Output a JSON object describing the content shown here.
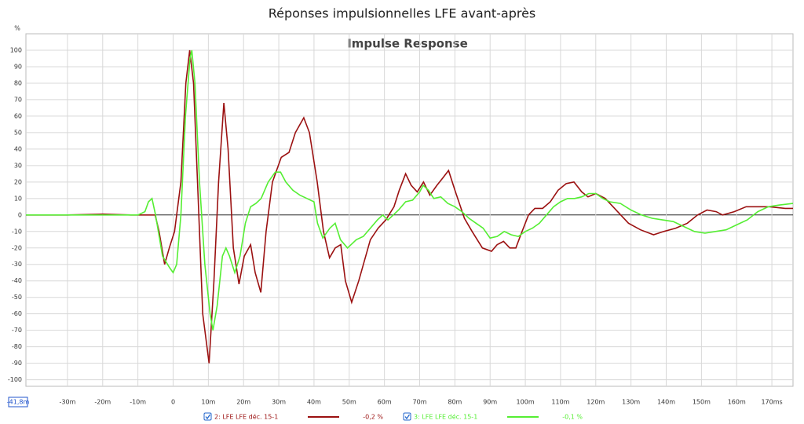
{
  "chart_data": {
    "type": "line",
    "title": "Réponses impulsionnelles LFE avant-après",
    "subtitle": "Impulse Response",
    "y_unit": "%",
    "xlim": [
      -41.8,
      176
    ],
    "ylim": [
      -104,
      110
    ],
    "xticks": [
      {
        "value": -41.8,
        "label": "-41,8m"
      },
      {
        "value": -30,
        "label": "-30m"
      },
      {
        "value": -20,
        "label": "-20m"
      },
      {
        "value": -10,
        "label": "-10m"
      },
      0,
      {
        "value": 10,
        "label": "10m"
      },
      {
        "value": 20,
        "label": "20m"
      },
      {
        "value": 30,
        "label": "30m"
      },
      {
        "value": 40,
        "label": "40m"
      },
      {
        "value": 50,
        "label": "50m"
      },
      {
        "value": 60,
        "label": "60m"
      },
      {
        "value": 70,
        "label": "70m"
      },
      {
        "value": 80,
        "label": "80m"
      },
      {
        "value": 90,
        "label": "90m"
      },
      {
        "value": 100,
        "label": "100m"
      },
      {
        "value": 110,
        "label": "110m"
      },
      {
        "value": 120,
        "label": "120m"
      },
      {
        "value": 130,
        "label": "130m"
      },
      {
        "value": 140,
        "label": "140m"
      },
      {
        "value": 150,
        "label": "150m"
      },
      {
        "value": 160,
        "label": "160m"
      },
      {
        "value": 170,
        "label": "170ms"
      }
    ],
    "yticks": [
      -100,
      -90,
      -80,
      -70,
      -60,
      -50,
      -40,
      -30,
      -20,
      -10,
      0,
      10,
      20,
      30,
      40,
      50,
      60,
      70,
      80,
      90,
      100
    ],
    "grid": true,
    "series": [
      {
        "name": "2: LFE LFE déc. 15-1",
        "legend_value": "-0,2 %",
        "color": "#9b1111",
        "x": [
          -41.8,
          -30,
          -20,
          -12,
          -5.1,
          -4,
          -2.4,
          -1.1,
          0.4,
          2.2,
          3.6,
          4.7,
          5.8,
          7.1,
          8.4,
          10.2,
          11.6,
          12.9,
          14.4,
          15.6,
          17.1,
          18.7,
          20.2,
          22,
          23.3,
          24.9,
          26.4,
          28.2,
          30.7,
          32.9,
          34.7,
          37.1,
          38.7,
          40.9,
          42.7,
          44.4,
          46,
          47.6,
          48.9,
          50.7,
          52.7,
          56,
          58.2,
          60.4,
          62.7,
          64.2,
          66,
          67.6,
          69.3,
          71.1,
          72.9,
          74.9,
          76.4,
          78.2,
          80,
          82.7,
          84.9,
          87.8,
          90.4,
          92,
          93.8,
          95.6,
          97.3,
          98.7,
          100.9,
          102.7,
          104.9,
          107.1,
          109.3,
          111.6,
          113.8,
          116,
          117.8,
          120,
          122.7,
          124.9,
          127.1,
          129.3,
          132.7,
          136.4,
          139.3,
          142.7,
          146,
          148.9,
          151.6,
          154.2,
          156,
          159.3,
          162.7,
          166,
          169.3,
          173.8,
          176
        ],
        "values": [
          0,
          0,
          0.5,
          0,
          0,
          -10,
          -30,
          -20,
          -10,
          20,
          80,
          100,
          80,
          10,
          -60,
          -90,
          -40,
          20,
          68,
          40,
          -20,
          -42,
          -25,
          -18,
          -35,
          -47,
          -10,
          20,
          35,
          38,
          50,
          59,
          50,
          20,
          -10,
          -26,
          -20,
          -18,
          -40,
          -53,
          -40,
          -15,
          -8,
          -3,
          5,
          15,
          25,
          18,
          14,
          20,
          12,
          18,
          22,
          27,
          15,
          -2,
          -10,
          -20,
          -22,
          -18,
          -16,
          -20,
          -20,
          -12,
          0,
          4,
          4,
          8,
          15,
          19,
          20,
          14,
          11,
          13,
          10,
          5,
          0,
          -5,
          -9,
          -12,
          -10,
          -8,
          -5,
          0,
          3,
          2,
          0,
          2,
          5,
          5,
          5,
          4,
          4
        ]
      },
      {
        "name": "3: LFE LFE déc. 15-1",
        "legend_value": "-0,1 %",
        "color": "#55ee33",
        "x": [
          -41.8,
          -10,
          -8,
          -7,
          -6,
          -5,
          -3,
          -1,
          0,
          1,
          2.2,
          3.5,
          4.8,
          5.3,
          6.2,
          7.5,
          9,
          10.5,
          11.3,
          12.5,
          14,
          15,
          16,
          17.5,
          19,
          20.5,
          22,
          23.5,
          25,
          27,
          29,
          30.5,
          32,
          34,
          36,
          38,
          40,
          41,
          42.5,
          44.5,
          46,
          47.5,
          49.5,
          52,
          54,
          56,
          58,
          59.5,
          61,
          62.5,
          64,
          66,
          68,
          70,
          71,
          72.5,
          74,
          76,
          78,
          80,
          82,
          84,
          86,
          88,
          90,
          92,
          94,
          96,
          98,
          100,
          102,
          104,
          106,
          108,
          110,
          112,
          114,
          116,
          118,
          120,
          122,
          124,
          127,
          130,
          133,
          136,
          139,
          142,
          145,
          148,
          151,
          154,
          157,
          160,
          163,
          166,
          169,
          172,
          176
        ],
        "values": [
          0,
          0,
          2,
          8,
          10,
          0,
          -25,
          -32,
          -35,
          -30,
          0,
          60,
          95,
          100,
          80,
          20,
          -30,
          -60,
          -70,
          -55,
          -25,
          -20,
          -25,
          -35,
          -25,
          -5,
          5,
          7,
          10,
          20,
          26,
          26,
          20,
          15,
          12,
          10,
          8,
          -5,
          -14,
          -8,
          -5,
          -15,
          -20,
          -15,
          -13,
          -8,
          -3,
          0,
          -3,
          0,
          3,
          8,
          9,
          14,
          18,
          15,
          10,
          11,
          7,
          5,
          2,
          -2,
          -5,
          -8,
          -14,
          -13,
          -10,
          -12,
          -13,
          -10,
          -8,
          -5,
          0,
          5,
          8,
          10,
          10,
          11,
          13,
          13,
          10,
          8,
          7,
          3,
          0,
          -2,
          -3,
          -4,
          -7,
          -10,
          -11,
          -10,
          -9,
          -6,
          -3,
          2,
          5,
          6,
          7
        ]
      }
    ]
  }
}
